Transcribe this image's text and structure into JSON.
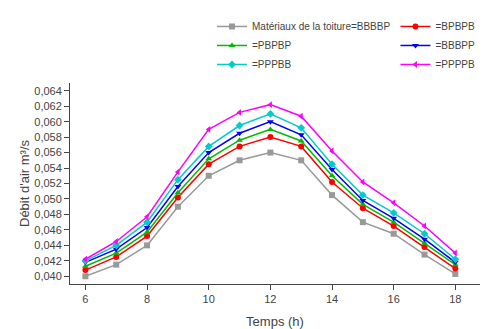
{
  "chart_data": {
    "type": "line",
    "x": [
      6,
      7,
      8,
      9,
      10,
      11,
      12,
      13,
      14,
      15,
      16,
      17,
      18
    ],
    "series": [
      {
        "name": "Matériaux de la toiture=BBBBP",
        "color": "#999999",
        "marker": "square",
        "values": [
          0.04,
          0.0415,
          0.044,
          0.049,
          0.053,
          0.055,
          0.056,
          0.055,
          0.0505,
          0.047,
          0.0455,
          0.0428,
          0.0403
        ]
      },
      {
        "name": "=BPBPB",
        "color": "#ff0000",
        "marker": "circle",
        "values": [
          0.0408,
          0.0425,
          0.0452,
          0.0502,
          0.0545,
          0.0568,
          0.058,
          0.0568,
          0.0522,
          0.0488,
          0.0465,
          0.0438,
          0.041
        ]
      },
      {
        "name": "=PBPBP",
        "color": "#00bb00",
        "marker": "triangle-up",
        "values": [
          0.0413,
          0.043,
          0.0457,
          0.0508,
          0.0552,
          0.0576,
          0.059,
          0.0575,
          0.053,
          0.0493,
          0.047,
          0.0443,
          0.0415
        ]
      },
      {
        "name": "=BBBPP",
        "color": "#0000ff",
        "marker": "triangle-down",
        "values": [
          0.0418,
          0.0435,
          0.0463,
          0.0516,
          0.056,
          0.0585,
          0.06,
          0.0583,
          0.0538,
          0.0498,
          0.0475,
          0.0448,
          0.0418
        ]
      },
      {
        "name": "=PPPBB",
        "color": "#00cccc",
        "marker": "diamond",
        "values": [
          0.042,
          0.044,
          0.047,
          0.0525,
          0.0568,
          0.0595,
          0.061,
          0.0592,
          0.0545,
          0.0505,
          0.0482,
          0.0455,
          0.0422
        ]
      },
      {
        "name": "=PPPPB",
        "color": "#ff00ff",
        "marker": "triangle-left",
        "values": [
          0.0422,
          0.0445,
          0.0477,
          0.0535,
          0.059,
          0.0612,
          0.0622,
          0.0607,
          0.0562,
          0.0522,
          0.0495,
          0.0465,
          0.043
        ]
      }
    ],
    "xlabel": "Temps (h)",
    "ylabel": "Débit d'air m³/s",
    "xlim": [
      5.5,
      18.8
    ],
    "ylim": [
      0.039,
      0.065
    ],
    "xticks": [
      6,
      8,
      10,
      12,
      14,
      16,
      18
    ],
    "yticks": [
      {
        "value": 0.04,
        "label": "0,040"
      },
      {
        "value": 0.042,
        "label": "0,042"
      },
      {
        "value": 0.044,
        "label": "0,044"
      },
      {
        "value": 0.046,
        "label": "0,046"
      },
      {
        "value": 0.048,
        "label": "0,048"
      },
      {
        "value": 0.05,
        "label": "0,050"
      },
      {
        "value": 0.052,
        "label": "0,052"
      },
      {
        "value": 0.054,
        "label": "0,054"
      },
      {
        "value": 0.056,
        "label": "0,056"
      },
      {
        "value": 0.058,
        "label": "0,058"
      },
      {
        "value": 0.06,
        "label": "0,060"
      },
      {
        "value": 0.062,
        "label": "0,062"
      },
      {
        "value": 0.064,
        "label": "0,064"
      }
    ],
    "legend": "upper right",
    "grid": false
  }
}
